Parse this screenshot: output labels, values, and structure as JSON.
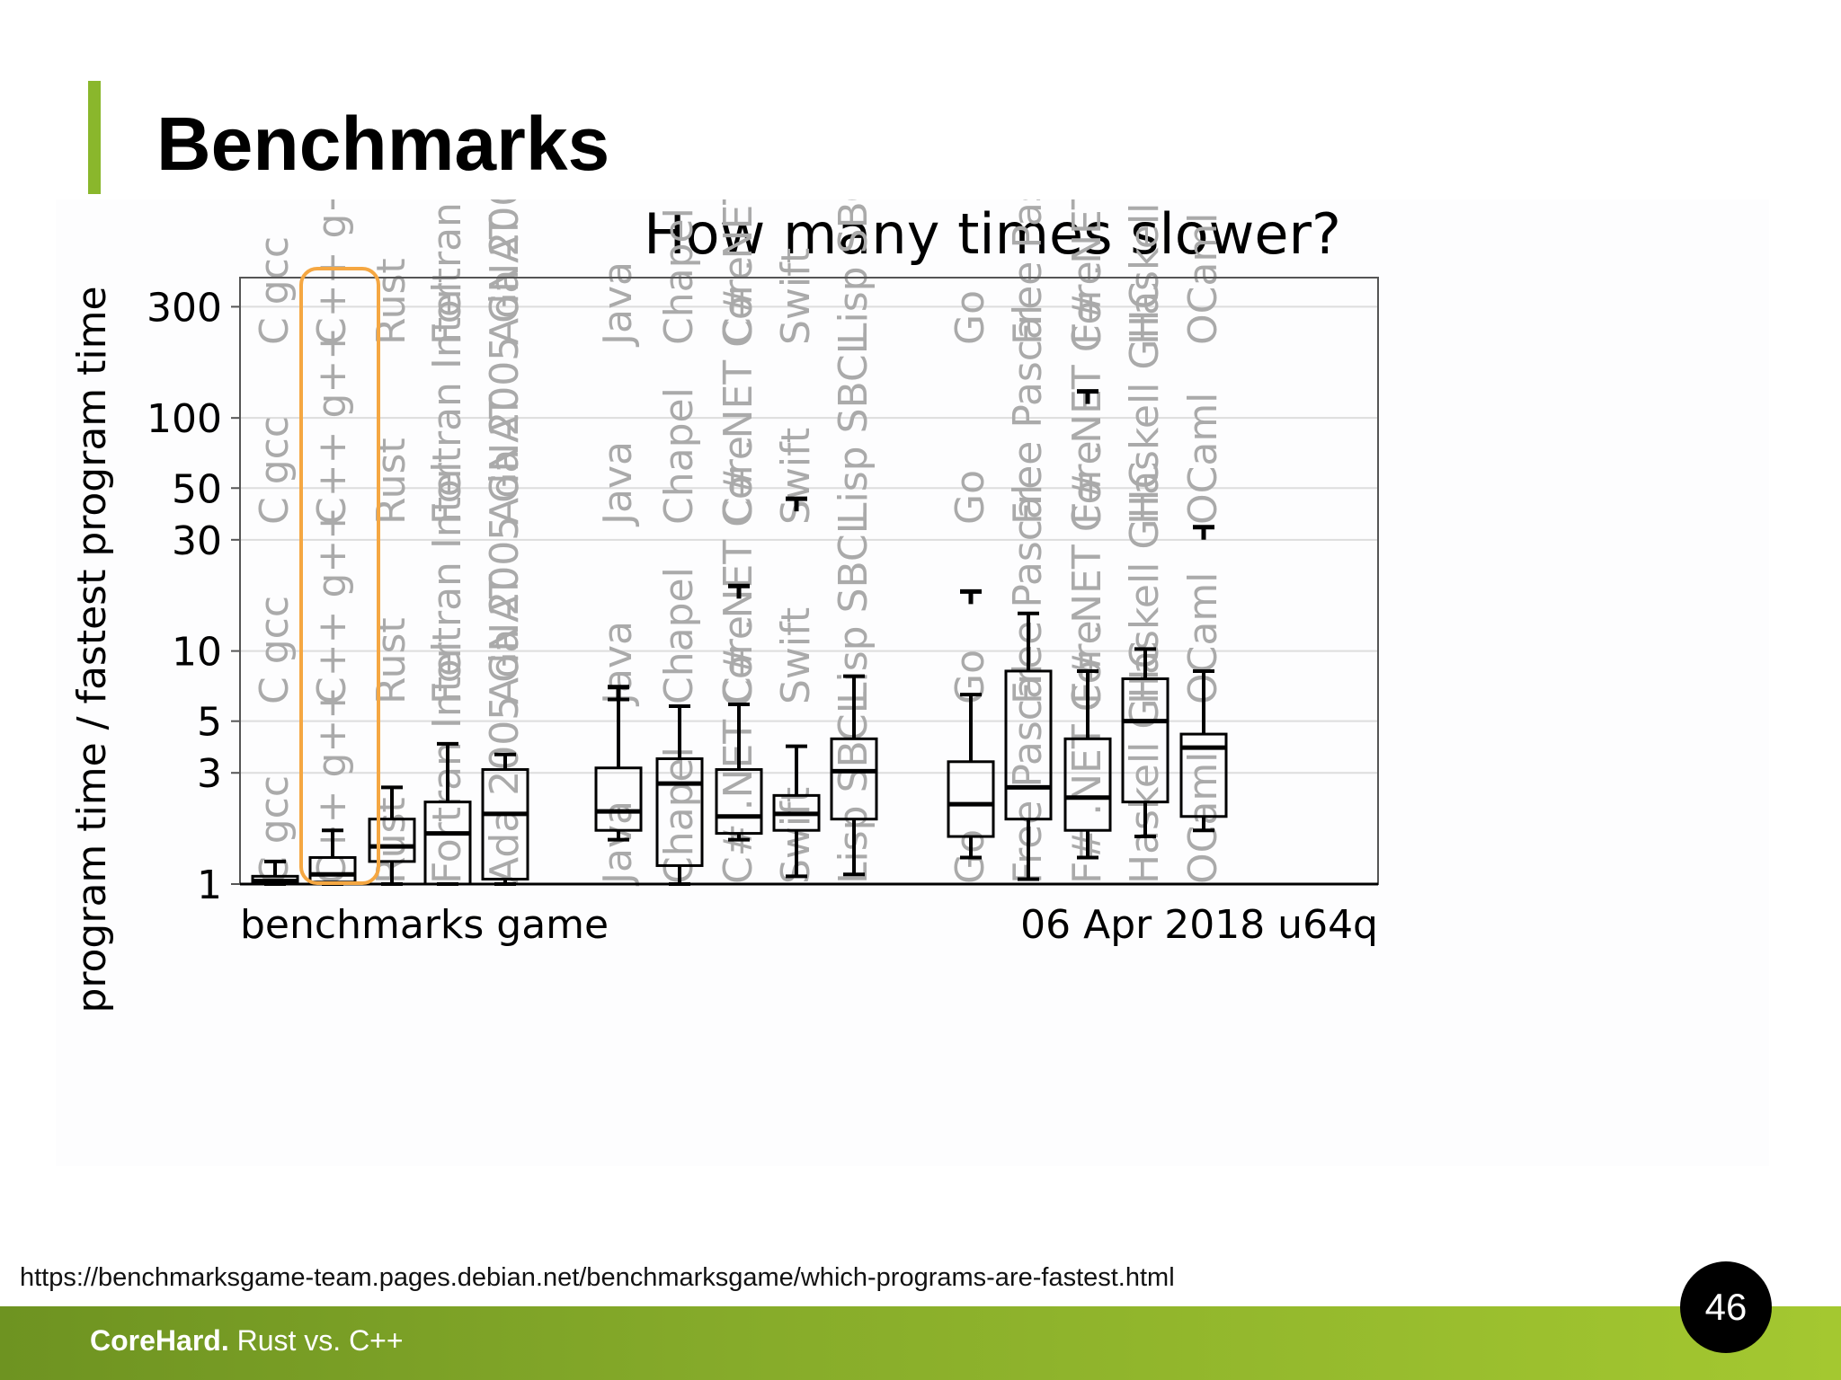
{
  "slide": {
    "title": "Benchmarks",
    "source_url": "https://benchmarksgame-team.pages.debian.net/benchmarksgame/which-programs-are-fastest.html",
    "page_number": "46",
    "footer_brand": "CoreHard.",
    "footer_subtitle": "Rust vs. C++"
  },
  "colors": {
    "accent": "#8ab72c",
    "highlight_box": "#f5a742",
    "label_grey": "#aaaaaa",
    "grid": "#dddddd"
  },
  "chart_data": {
    "type": "box",
    "title": "How many times slower?",
    "ylabel": "program time / fastest program time",
    "xlabel": "benchmarks game",
    "caption_right": "06 Apr 2018 u64q",
    "y_scale": "log",
    "ylim": [
      1,
      400
    ],
    "yticks": [
      1,
      3,
      5,
      10,
      30,
      50,
      100,
      300
    ],
    "grid": true,
    "highlighted_group": "Rust",
    "groups": [
      {
        "label": "C gcc",
        "min": 1.0,
        "q1": 1.0,
        "median": 1.03,
        "q3": 1.08,
        "max": 1.25,
        "outliers": []
      },
      {
        "label": "C++ g++",
        "min": 1.0,
        "q1": 1.02,
        "median": 1.1,
        "q3": 1.3,
        "max": 1.7,
        "outliers": []
      },
      {
        "label": "Rust",
        "min": 1.0,
        "q1": 1.25,
        "median": 1.45,
        "q3": 1.9,
        "max": 2.6,
        "outliers": []
      },
      {
        "label": "Fortran Intel",
        "min": 1.0,
        "q1": 1.0,
        "median": 1.65,
        "q3": 2.25,
        "max": 4.0,
        "outliers": []
      },
      {
        "label": "Ada 2005 GNAT",
        "min": 1.0,
        "q1": 1.05,
        "median": 2.0,
        "q3": 3.1,
        "max": 3.6,
        "outliers": []
      },
      {
        "label": "Java",
        "min": 1.55,
        "q1": 1.7,
        "median": 2.05,
        "q3": 3.15,
        "max": 6.2,
        "outliers": [
          7.0
        ]
      },
      {
        "label": "Chapel",
        "min": 1.0,
        "q1": 1.2,
        "median": 2.7,
        "q3": 3.45,
        "max": 5.8,
        "outliers": []
      },
      {
        "label": "C# .NET Core",
        "min": 1.55,
        "q1": 1.65,
        "median": 1.95,
        "q3": 3.1,
        "max": 5.9,
        "outliers": [
          19
        ]
      },
      {
        "label": "Swift",
        "min": 1.08,
        "q1": 1.7,
        "median": 2.0,
        "q3": 2.4,
        "max": 3.9,
        "outliers": [
          45
        ]
      },
      {
        "label": "Lisp SBCL",
        "min": 1.1,
        "q1": 1.9,
        "median": 3.05,
        "q3": 4.2,
        "max": 7.8,
        "outliers": []
      },
      {
        "label": "Go",
        "min": 1.3,
        "q1": 1.6,
        "median": 2.2,
        "q3": 3.35,
        "max": 6.5,
        "outliers": [
          18
        ]
      },
      {
        "label": "Free Pascal",
        "min": 1.05,
        "q1": 1.9,
        "median": 2.6,
        "q3": 8.2,
        "max": 14.5,
        "outliers": []
      },
      {
        "label": "F# .NET Core",
        "min": 1.3,
        "q1": 1.7,
        "median": 2.35,
        "q3": 4.2,
        "max": 8.2,
        "outliers": [
          130
        ]
      },
      {
        "label": "Haskell GHC",
        "min": 1.6,
        "q1": 2.25,
        "median": 5.0,
        "q3": 7.6,
        "max": 10.2,
        "outliers": []
      },
      {
        "label": "OCaml",
        "min": 1.7,
        "q1": 1.95,
        "median": 3.85,
        "q3": 4.4,
        "max": 8.2,
        "outliers": [
          34
        ]
      }
    ]
  }
}
